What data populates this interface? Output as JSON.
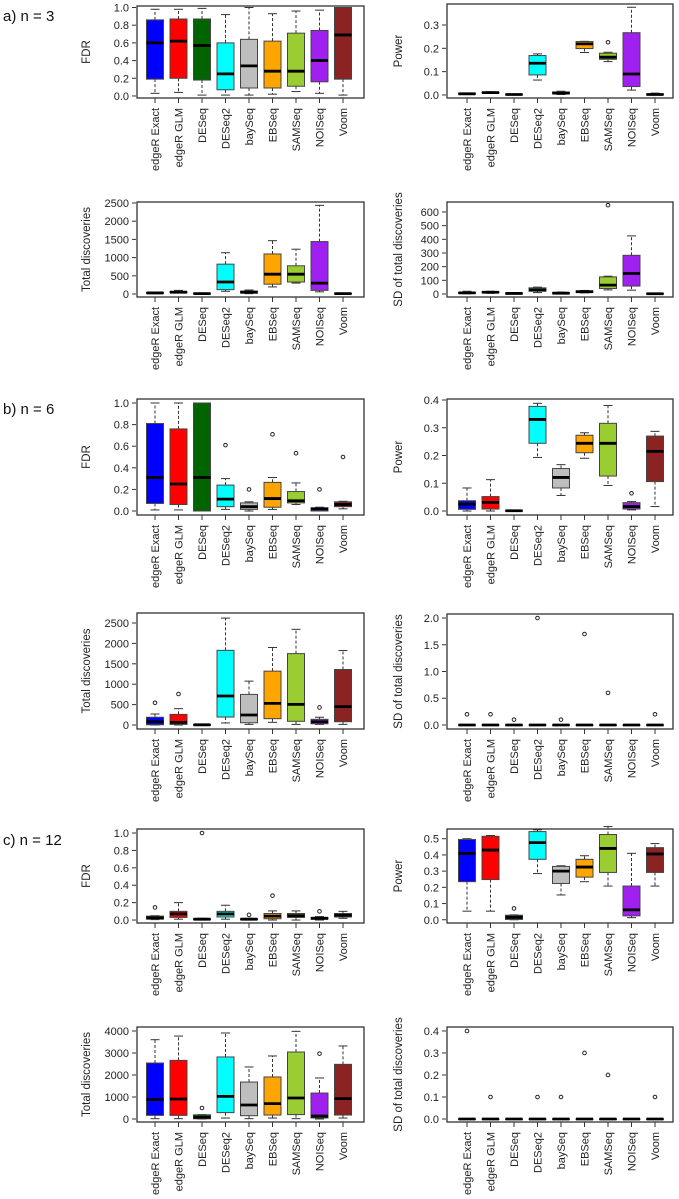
{
  "sections": [
    {
      "label": "a) n = 3"
    },
    {
      "label": "b) n = 6"
    },
    {
      "label": "c) n = 12"
    }
  ],
  "categories": [
    "edgeR Exact",
    "edgeR GLM",
    "DESeq",
    "DESeq2",
    "baySeq",
    "EBSeq",
    "SAMSeq",
    "NOISeq",
    "Voom"
  ],
  "colors": [
    "#0000FF",
    "#FF0000",
    "#006400",
    "#00FFFF",
    "#BEBEBE",
    "#FFA500",
    "#9ACD32",
    "#A020F0",
    "#8B2323"
  ],
  "chart_data": [
    {
      "type": "box",
      "section": 0,
      "column": "left",
      "ylabel": "FDR",
      "ylim": [
        -0.023,
        1.017
      ],
      "yticks": [
        "0.0",
        "0.2",
        "0.4",
        "0.6",
        "0.8",
        "1.0"
      ],
      "boxes": [
        [
          0.03,
          0.19,
          0.6,
          0.86,
          0.98
        ],
        [
          0.04,
          0.2,
          0.62,
          0.87,
          0.98
        ],
        [
          0.01,
          0.18,
          0.57,
          0.87,
          0.99
        ],
        [
          0.01,
          0.07,
          0.25,
          0.6,
          0.92
        ],
        [
          0.01,
          0.09,
          0.34,
          0.64,
          1.0
        ],
        [
          0.02,
          0.09,
          0.28,
          0.62,
          0.93
        ],
        [
          0.05,
          0.11,
          0.28,
          0.71,
          0.96
        ],
        [
          0.03,
          0.16,
          0.4,
          0.74,
          0.97
        ],
        [
          0.01,
          0.19,
          0.69,
          1.0,
          1.0
        ]
      ],
      "outliers": [
        [],
        [],
        [],
        [],
        [],
        [],
        [],
        [],
        []
      ]
    },
    {
      "type": "box",
      "section": 0,
      "column": "right",
      "ylabel": "Power",
      "ylim": [
        -0.013,
        0.39
      ],
      "yticks": [
        "0.0",
        "0.1",
        "0.2",
        "0.3"
      ],
      "boxes": [
        [
          0.003,
          0.004,
          0.005,
          0.007,
          0.008
        ],
        [
          0.007,
          0.008,
          0.01,
          0.012,
          0.014
        ],
        [
          0.0,
          0.001,
          0.002,
          0.003,
          0.004
        ],
        [
          0.064,
          0.086,
          0.136,
          0.169,
          0.176
        ],
        [
          0.002,
          0.005,
          0.008,
          0.013,
          0.016
        ],
        [
          0.182,
          0.199,
          0.219,
          0.229,
          0.23
        ],
        [
          0.143,
          0.153,
          0.162,
          0.179,
          0.183
        ],
        [
          0.021,
          0.036,
          0.09,
          0.267,
          0.376
        ],
        [
          0.0,
          0.001,
          0.002,
          0.004,
          0.008
        ]
      ],
      "outliers": [
        [],
        [],
        [],
        [],
        [],
        [],
        [
          0.226
        ],
        [],
        []
      ]
    },
    {
      "type": "box",
      "section": 0,
      "column": "left",
      "ylabel": "Total discoveries",
      "ylim": [
        -82,
        2527
      ],
      "yticks": [
        "0",
        "500",
        "1000",
        "1500",
        "2000",
        "2500"
      ],
      "boxes": [
        [
          10,
          20,
          30,
          40,
          50
        ],
        [
          30,
          40,
          50,
          70,
          100
        ],
        [
          0,
          5,
          10,
          20,
          30
        ],
        [
          75,
          120,
          330,
          820,
          1134
        ],
        [
          10,
          25,
          50,
          80,
          110
        ],
        [
          195,
          270,
          545,
          1100,
          1465
        ],
        [
          300,
          330,
          545,
          775,
          1230
        ],
        [
          60,
          100,
          300,
          1440,
          2435
        ],
        [
          0,
          5,
          10,
          20,
          30
        ]
      ],
      "outliers": [
        [],
        [],
        [],
        [],
        [],
        [],
        [],
        [],
        []
      ]
    },
    {
      "type": "box",
      "section": 0,
      "column": "right",
      "ylabel": "SD of total discoveries",
      "ylim": [
        -22,
        673
      ],
      "yticks": [
        "0",
        "100",
        "200",
        "300",
        "400",
        "500",
        "600"
      ],
      "boxes": [
        [
          2,
          5,
          8,
          12,
          20
        ],
        [
          5,
          10,
          13,
          16,
          20
        ],
        [
          0,
          2,
          4,
          6,
          8
        ],
        [
          10,
          20,
          30,
          45,
          50
        ],
        [
          0,
          3,
          6,
          10,
          14
        ],
        [
          8,
          12,
          17,
          22,
          26
        ],
        [
          30,
          40,
          65,
          125,
          130
        ],
        [
          28,
          58,
          150,
          283,
          425
        ],
        [
          0,
          1,
          2,
          3,
          5
        ]
      ],
      "outliers": [
        [],
        [],
        [],
        [],
        [],
        [],
        [
          650
        ],
        [],
        []
      ]
    },
    {
      "type": "box",
      "section": 1,
      "column": "left",
      "ylabel": "FDR",
      "ylim": [
        -0.037,
        1.037
      ],
      "yticks": [
        "0.0",
        "0.2",
        "0.4",
        "0.6",
        "0.8",
        "1.0"
      ],
      "boxes": [
        [
          0.01,
          0.07,
          0.31,
          0.81,
          1.0
        ],
        [
          0.01,
          0.06,
          0.25,
          0.76,
          1.0
        ],
        [
          0.0,
          0.0,
          0.31,
          1.0,
          1.0
        ],
        [
          0.015,
          0.04,
          0.11,
          0.24,
          0.3
        ],
        [
          0.0,
          0.015,
          0.04,
          0.075,
          0.085
        ],
        [
          0.015,
          0.035,
          0.115,
          0.265,
          0.31
        ],
        [
          0.06,
          0.075,
          0.095,
          0.18,
          0.26
        ],
        [
          0.0,
          0.0,
          0.02,
          0.03,
          0.035
        ],
        [
          0.02,
          0.04,
          0.06,
          0.085,
          0.09
        ]
      ],
      "outliers": [
        [],
        [],
        [],
        [
          0.61
        ],
        [
          0.2
        ],
        [
          0.71
        ],
        [
          0.535
        ],
        [
          0.2
        ],
        [
          0.5
        ]
      ]
    },
    {
      "type": "box",
      "section": 1,
      "column": "right",
      "ylabel": "Power",
      "ylim": [
        -0.0144,
        0.4036
      ],
      "yticks": [
        "0.0",
        "0.1",
        "0.2",
        "0.3",
        "0.4"
      ],
      "boxes": [
        [
          0.0,
          0.006,
          0.025,
          0.037,
          0.083
        ],
        [
          0.0,
          0.007,
          0.031,
          0.052,
          0.113
        ],
        [
          0.0,
          0.0,
          0.001,
          0.002,
          0.003
        ],
        [
          0.193,
          0.244,
          0.33,
          0.377,
          0.388
        ],
        [
          0.056,
          0.083,
          0.121,
          0.153,
          0.167
        ],
        [
          0.19,
          0.21,
          0.244,
          0.273,
          0.282
        ],
        [
          0.092,
          0.126,
          0.244,
          0.316,
          0.38
        ],
        [
          0.004,
          0.007,
          0.016,
          0.03,
          0.034
        ],
        [
          0.016,
          0.106,
          0.215,
          0.27,
          0.287
        ]
      ],
      "outliers": [
        [],
        [],
        [],
        [],
        [],
        [],
        [],
        [
          0.064
        ],
        []
      ]
    },
    {
      "type": "box",
      "section": 1,
      "column": "left",
      "ylabel": "Total discoveries",
      "ylim": [
        -98,
        2745
      ],
      "yticks": [
        "0",
        "500",
        "1000",
        "1500",
        "2000",
        "2500"
      ],
      "boxes": [
        [
          0,
          5,
          80,
          190,
          270
        ],
        [
          0,
          15,
          65,
          260,
          400
        ],
        [
          0,
          0,
          5,
          10,
          20
        ],
        [
          50,
          195,
          710,
          1830,
          2620
        ],
        [
          15,
          55,
          245,
          750,
          1075
        ],
        [
          65,
          155,
          530,
          1320,
          1900
        ],
        [
          15,
          90,
          505,
          1750,
          2345
        ],
        [
          15,
          30,
          80,
          140,
          190
        ],
        [
          15,
          80,
          450,
          1360,
          1825
        ]
      ],
      "outliers": [
        [
          545
        ],
        [
          760
        ],
        [],
        [],
        [],
        [],
        [],
        [
          430
        ],
        []
      ]
    },
    {
      "type": "box",
      "section": 1,
      "column": "right",
      "ylabel": "SD of total discoveries",
      "ylim": [
        -0.075,
        2.075
      ],
      "yticks": [
        "0.0",
        "0.5",
        "1.0",
        "1.5",
        "2.0"
      ],
      "boxes": [
        [
          0,
          0,
          0,
          0,
          0
        ],
        [
          0,
          0,
          0,
          0,
          0
        ],
        [
          0,
          0,
          0,
          0,
          0
        ],
        [
          0,
          0,
          0,
          0,
          0
        ],
        [
          0,
          0,
          0,
          0,
          0
        ],
        [
          0,
          0,
          0,
          0,
          0
        ],
        [
          0,
          0,
          0,
          0,
          0
        ],
        [
          0,
          0,
          0,
          0,
          0
        ],
        [
          0,
          0,
          0,
          0,
          0
        ]
      ],
      "outliers": [
        [
          0.2
        ],
        [
          0.2
        ],
        [
          0.1
        ],
        [
          2.0
        ],
        [
          0.1
        ],
        [
          1.7
        ],
        [
          0.6
        ],
        [],
        [
          0.2
        ]
      ]
    },
    {
      "type": "box",
      "section": 2,
      "column": "left",
      "ylabel": "FDR",
      "ylim": [
        -0.034,
        1.046
      ],
      "yticks": [
        "0.0",
        "0.2",
        "0.4",
        "0.6",
        "0.8",
        "1.0"
      ],
      "boxes": [
        [
          0.005,
          0.01,
          0.025,
          0.045,
          0.05
        ],
        [
          0.01,
          0.03,
          0.07,
          0.1,
          0.2
        ],
        [
          0.0,
          0.005,
          0.01,
          0.015,
          0.02
        ],
        [
          0.01,
          0.035,
          0.07,
          0.1,
          0.17
        ],
        [
          0.0,
          0.005,
          0.01,
          0.015,
          0.02
        ],
        [
          0.0,
          0.015,
          0.045,
          0.075,
          0.105
        ],
        [
          0.0,
          0.03,
          0.05,
          0.075,
          0.105
        ],
        [
          0.0,
          0.01,
          0.02,
          0.03,
          0.04
        ],
        [
          0.02,
          0.035,
          0.055,
          0.075,
          0.1
        ]
      ],
      "outliers": [
        [
          0.145
        ],
        [],
        [
          1.0
        ],
        [],
        [
          0.06
        ],
        [
          0.28
        ],
        [],
        [
          0.1
        ],
        []
      ]
    },
    {
      "type": "box",
      "section": 2,
      "column": "right",
      "ylabel": "Power",
      "ylim": [
        -0.02,
        0.56
      ],
      "yticks": [
        "0.0",
        "0.1",
        "0.2",
        "0.3",
        "0.4",
        "0.5"
      ],
      "boxes": [
        [
          0.053,
          0.235,
          0.41,
          0.495,
          0.5
        ],
        [
          0.053,
          0.248,
          0.43,
          0.515,
          0.52
        ],
        [
          0.0,
          0.002,
          0.015,
          0.028,
          0.03
        ],
        [
          0.285,
          0.373,
          0.476,
          0.544,
          0.555
        ],
        [
          0.153,
          0.224,
          0.3,
          0.329,
          0.333
        ],
        [
          0.235,
          0.263,
          0.325,
          0.373,
          0.395
        ],
        [
          0.208,
          0.292,
          0.44,
          0.526,
          0.575
        ],
        [
          0.013,
          0.024,
          0.061,
          0.208,
          0.41
        ],
        [
          0.208,
          0.292,
          0.406,
          0.445,
          0.47
        ]
      ],
      "outliers": [
        [],
        [],
        [
          0.07
        ],
        [],
        [],
        [],
        [],
        [],
        []
      ]
    },
    {
      "type": "box",
      "section": 2,
      "column": "left",
      "ylabel": "Total discoveries",
      "ylim": [
        -136,
        4182
      ],
      "yticks": [
        "0",
        "1000",
        "2000",
        "3000",
        "4000"
      ],
      "boxes": [
        [
          15,
          165,
          880,
          2545,
          3605
        ],
        [
          15,
          165,
          910,
          2665,
          3770
        ],
        [
          0,
          10,
          80,
          190,
          200
        ],
        [
          45,
          290,
          1030,
          2820,
          3910
        ],
        [
          15,
          150,
          635,
          1680,
          2365
        ],
        [
          45,
          180,
          700,
          1910,
          2865
        ],
        [
          15,
          200,
          955,
          3045,
          3985
        ],
        [
          0,
          45,
          135,
          1180,
          1865
        ],
        [
          45,
          180,
          925,
          2485,
          3320
        ]
      ],
      "outliers": [
        [],
        [],
        [
          500
        ],
        [],
        [],
        [],
        [],
        [
          2970
        ],
        []
      ]
    },
    {
      "type": "box",
      "section": 2,
      "column": "right",
      "ylabel": "SD of total discoveries",
      "ylim": [
        -0.0136,
        0.418
      ],
      "yticks": [
        "0.0",
        "0.1",
        "0.2",
        "0.3",
        "0.4"
      ],
      "boxes": [
        [
          0,
          0,
          0,
          0,
          0
        ],
        [
          0,
          0,
          0,
          0,
          0
        ],
        [
          0,
          0,
          0,
          0,
          0
        ],
        [
          0,
          0,
          0,
          0,
          0
        ],
        [
          0,
          0,
          0,
          0,
          0
        ],
        [
          0,
          0,
          0,
          0,
          0
        ],
        [
          0,
          0,
          0,
          0,
          0
        ],
        [
          0,
          0,
          0,
          0,
          0
        ],
        [
          0,
          0,
          0,
          0,
          0
        ]
      ],
      "outliers": [
        [
          0.4
        ],
        [
          0.1
        ],
        [],
        [
          0.1
        ],
        [
          0.1
        ],
        [
          0.3
        ],
        [
          0.2
        ],
        [],
        [
          0.1
        ]
      ]
    }
  ]
}
